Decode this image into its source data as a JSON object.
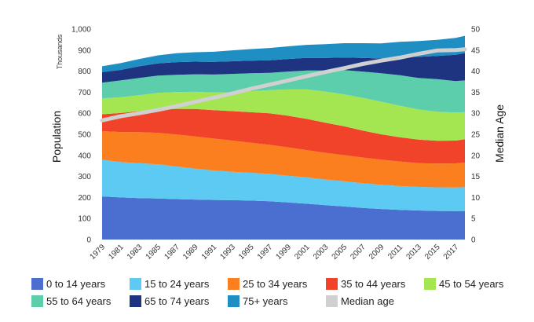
{
  "chart_data": {
    "type": "area",
    "stacked": true,
    "x": [
      1979,
      1981,
      1983,
      1985,
      1987,
      1989,
      1991,
      1993,
      1995,
      1997,
      1999,
      2001,
      2003,
      2005,
      2007,
      2009,
      2011,
      2013,
      2015,
      2017,
      2018
    ],
    "x_ticks": [
      "1979",
      "1981",
      "1983",
      "1985",
      "1987",
      "1989",
      "1991",
      "1993",
      "1995",
      "1997",
      "1999",
      "2001",
      "2003",
      "2005",
      "2007",
      "2009",
      "2011",
      "2013",
      "2015",
      "2017"
    ],
    "xlim": [
      1979,
      2018
    ],
    "ylim": [
      0,
      1000
    ],
    "y_ticks": [
      "0",
      "100",
      "200",
      "300",
      "400",
      "500",
      "600",
      "700",
      "800",
      "900",
      "1,000"
    ],
    "y2lim": [
      0,
      50
    ],
    "y2_ticks": [
      "0",
      "5",
      "10",
      "15",
      "20",
      "25",
      "30",
      "35",
      "40",
      "45",
      "50"
    ],
    "ylabel": "Population",
    "y_units": "Thousands",
    "y2label": "Median Age",
    "grid": false,
    "legend_position": "bottom",
    "series": [
      {
        "name": "0 to 14 years",
        "color": "#4a6fd0",
        "values": [
          205,
          200,
          197,
          195,
          192,
          190,
          188,
          187,
          185,
          182,
          176,
          170,
          163,
          157,
          150,
          145,
          141,
          138,
          136,
          135,
          136
        ]
      },
      {
        "name": "15 to 24 years",
        "color": "#5ccaf3",
        "values": [
          175,
          168,
          166,
          162,
          155,
          147,
          140,
          135,
          132,
          130,
          127,
          125,
          122,
          120,
          118,
          115,
          113,
          112,
          112,
          112,
          113
        ]
      },
      {
        "name": "25 to 34 years",
        "color": "#fb7f1f",
        "values": [
          135,
          143,
          147,
          150,
          152,
          153,
          152,
          148,
          143,
          138,
          135,
          130,
          127,
          124,
          122,
          120,
          117,
          113,
          113,
          115,
          117
        ]
      },
      {
        "name": "35 to 44 years",
        "color": "#f0432a",
        "values": [
          80,
          90,
          100,
          112,
          122,
          130,
          135,
          140,
          145,
          150,
          150,
          148,
          143,
          137,
          128,
          120,
          115,
          112,
          108,
          108,
          110
        ]
      },
      {
        "name": "45 to 54 years",
        "color": "#a4e552",
        "values": [
          75,
          75,
          76,
          78,
          80,
          82,
          84,
          90,
          100,
          110,
          125,
          140,
          148,
          152,
          155,
          155,
          150,
          143,
          138,
          133,
          130
        ]
      },
      {
        "name": "55 to 64 years",
        "color": "#5dceac",
        "values": [
          75,
          80,
          82,
          82,
          82,
          83,
          85,
          87,
          85,
          82,
          85,
          90,
          100,
          115,
          125,
          135,
          145,
          150,
          155,
          150,
          150
        ]
      },
      {
        "name": "65 to 74 years",
        "color": "#1e3480",
        "values": [
          50,
          50,
          55,
          58,
          60,
          60,
          60,
          60,
          60,
          60,
          60,
          60,
          60,
          60,
          65,
          70,
          85,
          100,
          110,
          125,
          130
        ]
      },
      {
        "name": "75+ years",
        "color": "#1f8ec2",
        "values": [
          28,
          32,
          35,
          38,
          42,
          45,
          48,
          52,
          55,
          58,
          60,
          62,
          65,
          68,
          70,
          72,
          73,
          75,
          77,
          80,
          82
        ]
      }
    ],
    "line_series": {
      "name": "Median age",
      "color": "#d0d0d0",
      "axis": "right",
      "values": [
        28.3,
        29.3,
        30.0,
        30.8,
        31.7,
        32.7,
        33.7,
        34.7,
        35.8,
        36.8,
        37.8,
        38.8,
        39.8,
        40.7,
        41.7,
        42.5,
        43.2,
        44.1,
        44.9,
        45.0,
        45.2
      ]
    }
  }
}
